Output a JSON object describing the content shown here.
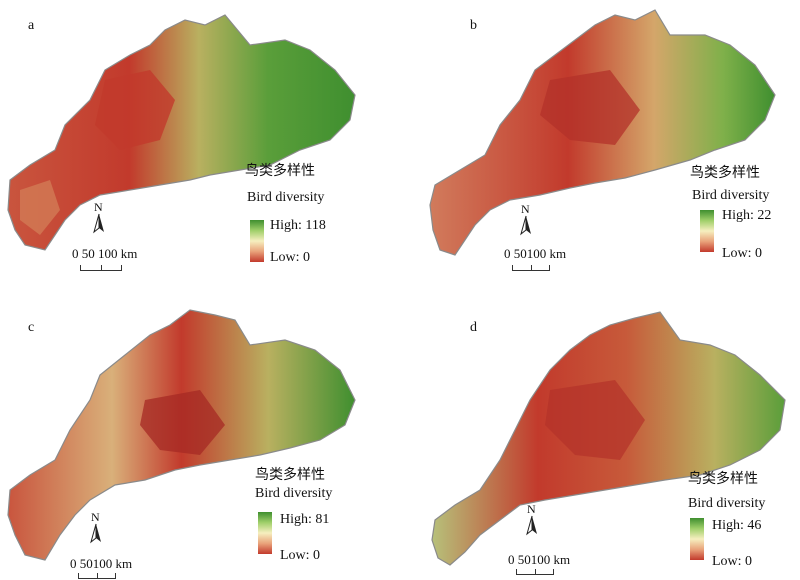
{
  "panels": [
    {
      "label": "a",
      "legend_cn": "鸟类多样性",
      "legend_en": "Bird diversity",
      "high": "High: 118",
      "low": "Low: 0",
      "scale": "0  50 100 km",
      "north": "N"
    },
    {
      "label": "b",
      "legend_cn": "鸟类多样性",
      "legend_en": "Bird diversity",
      "high": "High: 22",
      "low": "Low: 0",
      "scale": "0  50100 km",
      "north": "N"
    },
    {
      "label": "c",
      "legend_cn": "鸟类多样性",
      "legend_en": "Bird diversity",
      "high": "High: 81",
      "low": "Low: 0",
      "scale": "0  50100 km",
      "north": "N"
    },
    {
      "label": "d",
      "legend_cn": "鸟类多样性",
      "legend_en": "Bird diversity",
      "high": "High: 46",
      "low": "Low: 0",
      "scale": "0  50100 km",
      "north": "N"
    }
  ],
  "colors": {
    "high": "#3f8f2f",
    "mid": "#f6efbf",
    "low": "#c23a2c",
    "outline": "#8a8a8a"
  }
}
